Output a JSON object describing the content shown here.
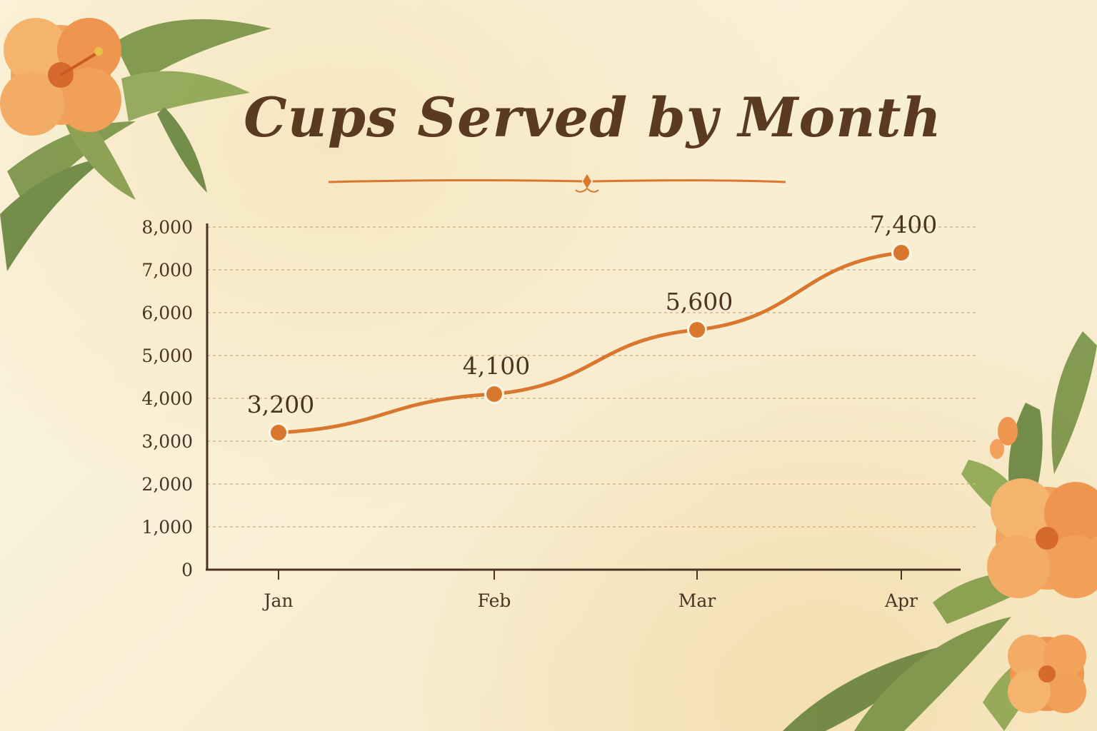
{
  "chart_data": {
    "type": "line",
    "title": "Cups Served by Month",
    "xlabel": "",
    "ylabel": "",
    "categories": [
      "Jan",
      "Feb",
      "Mar",
      "Apr"
    ],
    "series": [
      {
        "values": [
          3200,
          4100,
          5600,
          7400
        ]
      }
    ],
    "data_labels": [
      "3,200",
      "4,100",
      "5,600",
      "7,400"
    ],
    "ylim": [
      0,
      8000
    ],
    "yticks": [
      0,
      1000,
      2000,
      3000,
      4000,
      5000,
      6000,
      7000,
      8000
    ],
    "ytick_labels": [
      "0",
      "1,000",
      "2,000",
      "3,000",
      "4,000",
      "5,000",
      "6,000",
      "7,000",
      "8,000"
    ],
    "grid": true,
    "legend": "none"
  },
  "colors": {
    "line": "#d9772e",
    "marker": "#d9772e",
    "axis": "#4a3322",
    "grid": "#d8b68c",
    "text": "#4a3322",
    "title": "#5a3b22"
  },
  "decorations": {
    "top_left": "hibiscus-and-palm-leaves",
    "bottom_right": "hibiscus-and-monstera-leaves"
  }
}
